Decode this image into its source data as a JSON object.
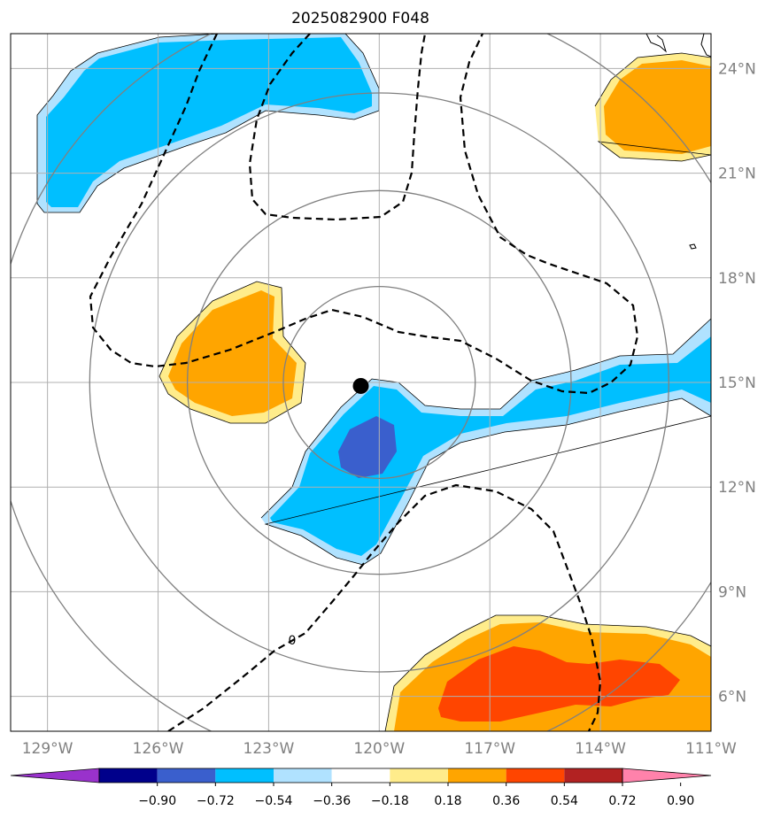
{
  "title": "2025082900 F048",
  "map": {
    "lon_range": [
      -130,
      -111
    ],
    "lat_range": [
      5,
      25
    ],
    "lon_ticks": [
      {
        "value": -129,
        "label": "129°W"
      },
      {
        "value": -126,
        "label": "126°W"
      },
      {
        "value": -123,
        "label": "123°W"
      },
      {
        "value": -120,
        "label": "120°W"
      },
      {
        "value": -117,
        "label": "117°W"
      },
      {
        "value": -114,
        "label": "114°W"
      },
      {
        "value": -111,
        "label": "111°W"
      }
    ],
    "lat_ticks": [
      {
        "value": 6,
        "label": "6°N"
      },
      {
        "value": 9,
        "label": "9°N"
      },
      {
        "value": 12,
        "label": "12°N"
      },
      {
        "value": 15,
        "label": "15°N"
      },
      {
        "value": 18,
        "label": "18°N"
      },
      {
        "value": 21,
        "label": "21°N"
      },
      {
        "value": 24,
        "label": "24°N"
      }
    ],
    "center_marker": {
      "lon": -120.5,
      "lat": 14.9
    },
    "range_rings_deg": [
      2.75,
      5.5,
      8.3,
      11.1
    ],
    "zero_contour_label": "0"
  },
  "colorbar": {
    "colors": [
      "#9932cc",
      "#00008b",
      "#3a5fcd",
      "#00bfff",
      "#b0e2ff",
      "#ffffff",
      "#ffec8b",
      "#ffa500",
      "#ff4500",
      "#b22222",
      "#ff82ab"
    ],
    "labels": [
      "−0.90",
      "−0.72",
      "−0.54",
      "−0.36",
      "−0.18",
      "0.18",
      "0.36",
      "0.54",
      "0.72",
      "0.90"
    ]
  }
}
